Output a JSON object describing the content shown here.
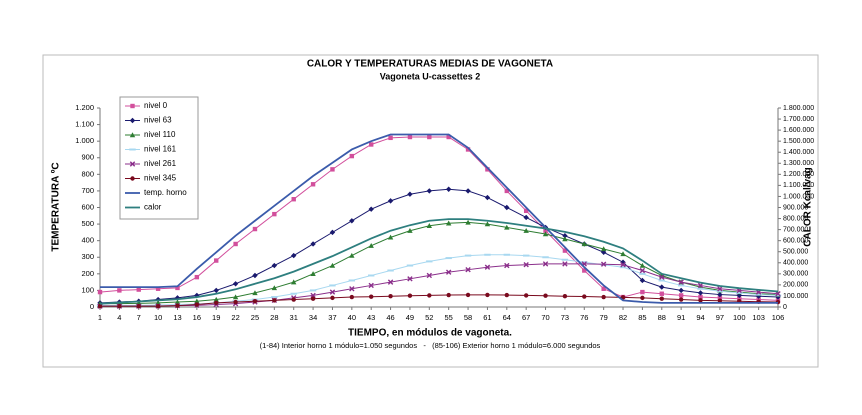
{
  "chart_data": {
    "type": "line",
    "title": "CALOR Y TEMPERATURAS MEDIAS DE VAGONETA",
    "subtitle": "Vagoneta U-cassettes 2",
    "y_label": "TEMPERATURA ºC",
    "y2_label": "CALOR  Kcal/vag",
    "x_label": "TIEMPO, en módulos de vagoneta.",
    "note": "(1-84) Interior horno 1 módulo=1.050 segundos   -   (85-106) Exterior horno 1 módulo=6.000 segundos",
    "x": [
      1,
      4,
      7,
      10,
      13,
      16,
      19,
      22,
      25,
      28,
      31,
      34,
      37,
      40,
      43,
      46,
      49,
      52,
      55,
      58,
      61,
      64,
      67,
      70,
      73,
      76,
      79,
      82,
      85,
      88,
      91,
      94,
      97,
      100,
      103,
      106
    ],
    "xlim": [
      1,
      106
    ],
    "xticks": [
      1,
      4,
      7,
      10,
      13,
      16,
      19,
      22,
      25,
      28,
      31,
      34,
      37,
      40,
      43,
      46,
      49,
      52,
      55,
      58,
      61,
      64,
      67,
      70,
      73,
      76,
      79,
      82,
      85,
      88,
      91,
      94,
      97,
      100,
      103,
      106
    ],
    "ylim": [
      0,
      1200
    ],
    "yticks": [
      0,
      100,
      200,
      300,
      400,
      500,
      600,
      700,
      800,
      900,
      {
        "value": 1000,
        "label": "1.000"
      },
      {
        "value": 1100,
        "label": "1.100"
      },
      {
        "value": 1200,
        "label": "1.200"
      }
    ],
    "y2lim": [
      0,
      1800000
    ],
    "y2ticks": [
      0,
      {
        "value": 100000,
        "label": "100.000"
      },
      {
        "value": 200000,
        "label": "200.000"
      },
      {
        "value": 300000,
        "label": "300.000"
      },
      {
        "value": 400000,
        "label": "400.000"
      },
      {
        "value": 500000,
        "label": "500.000"
      },
      {
        "value": 600000,
        "label": "600.000"
      },
      {
        "value": 700000,
        "label": "700.000"
      },
      {
        "value": 800000,
        "label": "800.000"
      },
      {
        "value": 900000,
        "label": "900.000"
      },
      {
        "value": 1000000,
        "label": "1.000.000"
      },
      {
        "value": 1100000,
        "label": "1.100.000"
      },
      {
        "value": 1200000,
        "label": "1.200.000"
      },
      {
        "value": 1300000,
        "label": "1.300.000"
      },
      {
        "value": 1400000,
        "label": "1.400.000"
      },
      {
        "value": 1500000,
        "label": "1.500.000"
      },
      {
        "value": 1600000,
        "label": "1.600.000"
      },
      {
        "value": 1700000,
        "label": "1.700.000"
      },
      {
        "value": 1800000,
        "label": "1.800.000"
      }
    ],
    "legend": "top-left",
    "series": [
      {
        "name": "nivel 0",
        "color": "#d24f9c",
        "marker": "square",
        "values": [
          90,
          100,
          105,
          110,
          115,
          180,
          280,
          380,
          470,
          560,
          650,
          740,
          830,
          910,
          980,
          1020,
          1025,
          1025,
          1025,
          950,
          830,
          700,
          580,
          460,
          340,
          220,
          110,
          60,
          90,
          80,
          70,
          60,
          55,
          50,
          45,
          40
        ]
      },
      {
        "name": "nivel 63",
        "color": "#1a1a6e",
        "marker": "diamond",
        "values": [
          25,
          30,
          35,
          45,
          55,
          70,
          100,
          140,
          190,
          250,
          310,
          380,
          450,
          520,
          590,
          640,
          680,
          700,
          710,
          700,
          660,
          600,
          540,
          480,
          430,
          380,
          330,
          270,
          160,
          120,
          100,
          85,
          75,
          70,
          65,
          60
        ]
      },
      {
        "name": "nivel 110",
        "color": "#2e7d32",
        "marker": "triangle",
        "values": [
          20,
          20,
          22,
          25,
          30,
          35,
          45,
          60,
          85,
          115,
          150,
          200,
          250,
          310,
          370,
          420,
          460,
          490,
          505,
          510,
          500,
          480,
          460,
          440,
          410,
          380,
          350,
          320,
          250,
          190,
          150,
          120,
          100,
          90,
          80,
          75
        ]
      },
      {
        "name": "nivel 161",
        "color": "#a8d8f0",
        "marker": "dash",
        "values": [
          10,
          10,
          10,
          12,
          15,
          18,
          25,
          35,
          45,
          60,
          80,
          100,
          130,
          160,
          190,
          220,
          250,
          275,
          295,
          310,
          315,
          315,
          310,
          300,
          285,
          270,
          255,
          240,
          200,
          160,
          130,
          110,
          95,
          85,
          75,
          70
        ]
      },
      {
        "name": "nivel 261",
        "color": "#8b2f8b",
        "marker": "x",
        "values": [
          5,
          5,
          5,
          6,
          8,
          10,
          15,
          20,
          30,
          40,
          55,
          70,
          90,
          110,
          130,
          150,
          170,
          190,
          210,
          225,
          240,
          250,
          255,
          260,
          260,
          260,
          258,
          255,
          220,
          180,
          150,
          130,
          110,
          100,
          90,
          80
        ]
      },
      {
        "name": "nivel 345",
        "color": "#7a0a1e",
        "marker": "circle",
        "values": [
          5,
          5,
          5,
          5,
          8,
          15,
          25,
          30,
          35,
          40,
          45,
          50,
          55,
          60,
          62,
          65,
          68,
          70,
          72,
          73,
          73,
          72,
          70,
          68,
          65,
          63,
          60,
          58,
          55,
          50,
          45,
          40,
          38,
          35,
          32,
          30
        ]
      },
      {
        "name": "temp. horno",
        "color": "#3b5bab",
        "values": [
          120,
          120,
          120,
          120,
          125,
          230,
          330,
          430,
          520,
          610,
          700,
          790,
          870,
          950,
          1000,
          1040,
          1040,
          1040,
          1040,
          960,
          840,
          720,
          600,
          480,
          360,
          240,
          130,
          40,
          30,
          25,
          25,
          25,
          25,
          25,
          25,
          25
        ]
      },
      {
        "name": "calor",
        "color": "#2e7f7f",
        "axis": "y2",
        "values": [
          30000,
          40000,
          50000,
          60000,
          70000,
          90000,
          120000,
          160000,
          210000,
          260000,
          320000,
          390000,
          460000,
          540000,
          620000,
          690000,
          740000,
          780000,
          795000,
          795000,
          780000,
          760000,
          735000,
          710000,
          680000,
          640000,
          590000,
          530000,
          420000,
          300000,
          260000,
          220000,
          190000,
          170000,
          155000,
          140000
        ]
      }
    ]
  }
}
